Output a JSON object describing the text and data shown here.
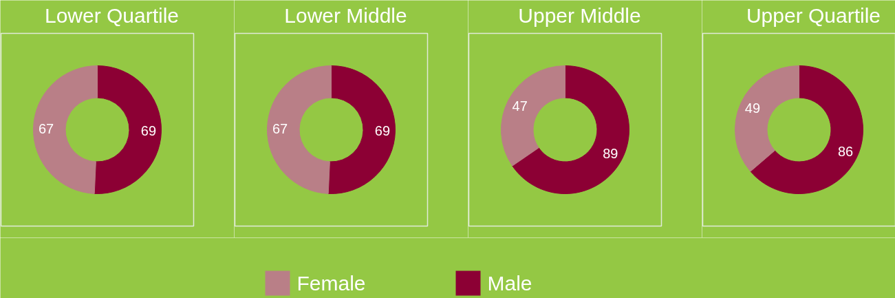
{
  "chart_data": [
    {
      "type": "donut",
      "title": "Lower Quartile",
      "categories": [
        "Female",
        "Male"
      ],
      "values": [
        67,
        69
      ],
      "colors": [
        "#b97f87",
        "#8c0034"
      ],
      "data_labels": true,
      "legend": "bottom"
    },
    {
      "type": "donut",
      "title": "Lower Middle",
      "categories": [
        null,
        null
      ],
      "values": [
        67,
        69
      ],
      "colors": [
        "#b97f87",
        "#8c0034"
      ],
      "data_labels": true
    },
    {
      "type": "donut",
      "title": "Upper Middle",
      "categories": [
        null,
        null
      ],
      "values": [
        47,
        89
      ],
      "colors": [
        "#b97f87",
        "#8c0034"
      ],
      "data_labels": true
    },
    {
      "type": "donut",
      "title": "Upper Quartile",
      "categories": [
        null,
        null
      ],
      "values": [
        49,
        86
      ],
      "colors": [
        "#b97f87",
        "#8c0034"
      ],
      "data_labels": true
    }
  ]
}
